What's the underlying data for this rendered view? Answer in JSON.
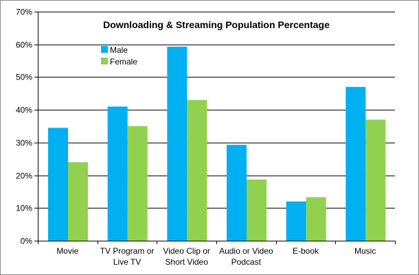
{
  "chart_data": {
    "type": "bar",
    "title": "Downloading & Streaming Population Percentage",
    "xlabel": "",
    "ylabel": "",
    "ylim": [
      0,
      70
    ],
    "y_ticks": [
      0,
      10,
      20,
      30,
      40,
      50,
      60,
      70
    ],
    "y_tick_labels": [
      "0%",
      "10%",
      "20%",
      "30%",
      "40%",
      "50%",
      "60%",
      "70%"
    ],
    "grid": true,
    "legend_position": "top-left",
    "categories": [
      [
        "Movie"
      ],
      [
        "TV Program or",
        "Live TV"
      ],
      [
        "Video Clip or",
        "Short Video"
      ],
      [
        "Audio or Video",
        "Podcast"
      ],
      [
        "E-book"
      ],
      [
        "Music"
      ]
    ],
    "series": [
      {
        "name": "Male",
        "color": "#00b0f0",
        "values": [
          34.5,
          41,
          59.3,
          29.3,
          12,
          47
        ]
      },
      {
        "name": "Female",
        "color": "#92d050",
        "values": [
          24,
          35,
          43,
          18.7,
          13.3,
          37
        ]
      }
    ]
  }
}
